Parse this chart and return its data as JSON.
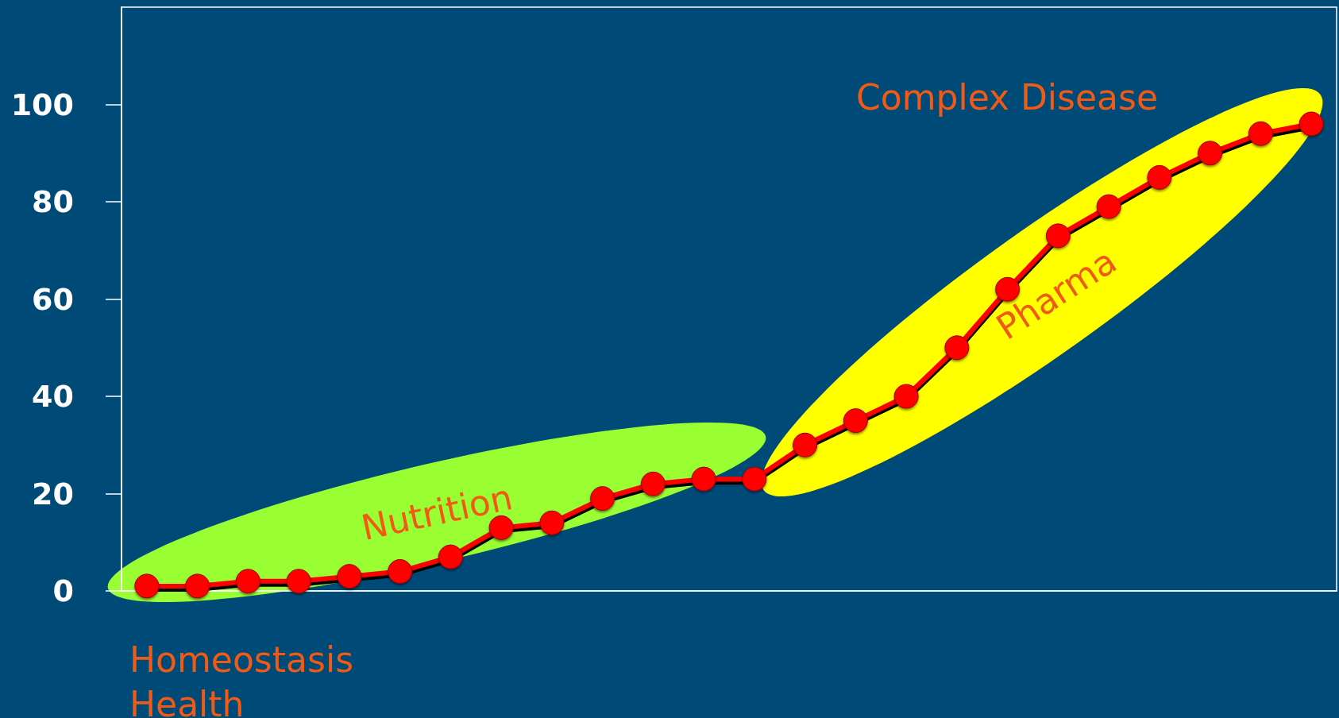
{
  "chart_data": {
    "type": "line",
    "categories": [
      null,
      null,
      null,
      null,
      null,
      null,
      null,
      null,
      null,
      null,
      null,
      null,
      null,
      null,
      null,
      null,
      null,
      null,
      null,
      null,
      null,
      null,
      null,
      null
    ],
    "series": [
      {
        "color": "#ff0000",
        "values": [
          1,
          1,
          2,
          2,
          3,
          4,
          7,
          13,
          14,
          19,
          22,
          23,
          23,
          30,
          35,
          40,
          50,
          62,
          73,
          79,
          85,
          90,
          94,
          96
        ]
      }
    ],
    "ylim": [
      0,
      120
    ],
    "yticks": [
      0,
      20,
      40,
      60,
      80,
      100
    ],
    "annotations": [
      "Complex Disease",
      "Pharma",
      "Nutrition",
      "Homeostasis\nHealth"
    ],
    "grid": false,
    "marker": "circle",
    "line_style": "solid"
  }
}
